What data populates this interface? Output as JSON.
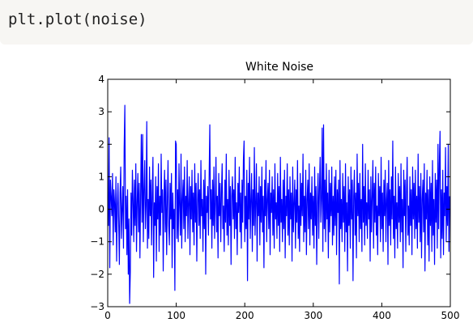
{
  "code": "plt.plot(noise)",
  "chart_data": {
    "type": "line",
    "title": "White Noise",
    "series": [
      {
        "color": "#0000ff",
        "values": [
          0.3,
          -0.5,
          2.2,
          -1.8,
          0.9,
          0.4,
          -0.2,
          1.1,
          -1.1,
          0.6,
          0.2,
          -0.7,
          1.0,
          -1.6,
          0.1,
          0.8,
          -0.4,
          -1.7,
          0.5,
          1.3,
          -0.9,
          0.0,
          0.7,
          -1.2,
          1.9,
          3.2,
          -0.6,
          0.4,
          -1.4,
          0.6,
          -2.0,
          -0.3,
          -2.9,
          -1.9,
          0.5,
          -0.8,
          1.2,
          0.3,
          -1.0,
          0.9,
          -0.5,
          1.4,
          -1.3,
          0.2,
          1.1,
          -0.7,
          0.8,
          -1.5,
          0.4,
          2.3,
          -0.4,
          2.3,
          -1.0,
          0.6,
          1.5,
          -0.6,
          0.1,
          2.7,
          -1.2,
          0.3,
          -0.9,
          1.3,
          -0.2,
          0.9,
          -1.1,
          0.5,
          1.6,
          -2.1,
          0.2,
          -0.5,
          1.0,
          -1.6,
          0.7,
          -0.3,
          1.4,
          -1.3,
          0.4,
          -0.8,
          1.7,
          -0.1,
          0.6,
          -1.9,
          0.3,
          1.2,
          -0.7,
          0.9,
          -1.4,
          0.2,
          1.5,
          -0.5,
          -1.1,
          0.8,
          -0.3,
          1.1,
          -1.8,
          0.5,
          -0.6,
          0.0,
          -2.5,
          2.1,
          2.0,
          -0.9,
          0.6,
          -1.0,
          1.4,
          0.1,
          -0.8,
          1.7,
          -1.2,
          0.3,
          0.9,
          -0.6,
          1.3,
          -1.0,
          0.4,
          -0.2,
          1.5,
          -0.9,
          0.2,
          1.0,
          -1.4,
          0.7,
          -0.3,
          1.2,
          -0.7,
          0.5,
          -1.1,
          1.4,
          -0.4,
          0.8,
          -1.6,
          0.2,
          1.1,
          -0.5,
          0.6,
          -0.9,
          1.5,
          -0.2,
          0.3,
          -1.3,
          0.9,
          -0.6,
          1.2,
          -2.0,
          0.4,
          -0.1,
          0.7,
          -0.8,
          1.0,
          2.6,
          -0.3,
          0.6,
          -1.2,
          0.9,
          -0.5,
          1.3,
          -0.9,
          0.2,
          1.6,
          -0.7,
          0.4,
          -1.5,
          1.1,
          -0.2,
          0.8,
          -1.0,
          0.5,
          1.4,
          -0.6,
          0.1,
          -1.3,
          0.9,
          -0.4,
          1.7,
          -0.8,
          0.3,
          -1.1,
          1.2,
          -0.5,
          0.7,
          -1.7,
          0.4,
          1.0,
          -0.3,
          0.6,
          -0.9,
          1.6,
          -0.6,
          0.2,
          -1.4,
          0.8,
          -0.1,
          1.3,
          -0.7,
          0.5,
          -1.2,
          0.9,
          -0.4,
          1.5,
          2.1,
          -1.0,
          0.4,
          -0.6,
          1.2,
          -2.2,
          0.8,
          -0.3,
          1.6,
          -0.9,
          0.3,
          1.1,
          -1.3,
          0.6,
          -0.5,
          1.9,
          -0.8,
          0.2,
          1.4,
          -1.6,
          0.5,
          -0.2,
          1.0,
          -1.1,
          0.7,
          -0.4,
          1.3,
          -0.7,
          0.4,
          -1.8,
          0.9,
          -0.2,
          1.5,
          -1.0,
          0.3,
          0.8,
          -0.6,
          1.2,
          -1.4,
          0.5,
          -0.1,
          1.0,
          -0.8,
          0.6,
          -1.2,
          1.4,
          -0.3,
          0.2,
          -0.9,
          1.1,
          -0.5,
          0.7,
          -1.3,
          1.6,
          -0.4,
          0.3,
          -1.0,
          0.9,
          -0.6,
          1.2,
          -1.5,
          0.4,
          -0.2,
          1.4,
          -0.8,
          0.6,
          -1.1,
          1.0,
          -0.3,
          0.5,
          -1.6,
          1.3,
          -0.7,
          0.2,
          0.9,
          -1.2,
          0.6,
          -0.4,
          1.5,
          -0.9,
          0.1,
          -1.3,
          1.1,
          -0.5,
          0.8,
          -0.2,
          1.7,
          -1.0,
          0.4,
          -0.7,
          1.2,
          -1.4,
          0.3,
          0.9,
          -0.6,
          1.4,
          -1.1,
          0.5,
          -0.3,
          1.0,
          -0.8,
          0.4,
          -1.2,
          1.3,
          -0.5,
          0.7,
          -1.7,
          0.2,
          1.1,
          -0.9,
          0.6,
          1.6,
          -0.4,
          0.3,
          2.5,
          -1.3,
          2.6,
          -0.6,
          0.9,
          -1.0,
          1.4,
          -0.3,
          0.5,
          -1.5,
          1.2,
          -0.7,
          0.8,
          -0.2,
          1.3,
          -1.1,
          0.4,
          -0.8,
          1.0,
          -0.5,
          1.2,
          -1.4,
          0.6,
          -0.1,
          0.9,
          -2.3,
          1.5,
          -0.6,
          0.3,
          -1.0,
          1.1,
          -0.4,
          0.7,
          -1.3,
          1.4,
          -0.7,
          0.2,
          -1.9,
          1.0,
          -0.5,
          0.6,
          -1.2,
          1.3,
          -0.3,
          0.9,
          -2.2,
          0.4,
          1.2,
          -0.8,
          0.5,
          -1.5,
          1.7,
          -0.2,
          0.8,
          -1.0,
          1.1,
          -0.6,
          0.3,
          -1.3,
          2.0,
          -0.4,
          0.7,
          -1.1,
          1.4,
          -0.5,
          0.2,
          -0.9,
          1.2,
          -0.3,
          0.6,
          -1.6,
          1.0,
          -0.7,
          0.4,
          1.5,
          -1.2,
          0.8,
          -0.4,
          1.3,
          -0.8,
          0.1,
          -1.4,
          1.1,
          -0.2,
          0.7,
          -1.0,
          1.6,
          -0.6,
          0.5,
          -1.3,
          0.9,
          -0.2,
          1.2,
          -1.0,
          0.3,
          0.8,
          -1.7,
          1.5,
          -0.5,
          0.6,
          -1.1,
          1.0,
          -0.3,
          2.1,
          -0.9,
          0.4,
          -1.5,
          1.3,
          -0.6,
          0.2,
          -1.2,
          1.1,
          -0.4,
          0.7,
          -1.0,
          1.4,
          -0.7,
          0.3,
          -1.8,
          1.2,
          -0.2,
          0.9,
          -1.3,
          0.5,
          1.6,
          -0.8,
          0.1,
          -1.1,
          1.0,
          -0.5,
          0.6,
          -1.4,
          1.3,
          -0.3,
          0.8,
          -0.9,
          1.2,
          -0.6,
          0.4,
          -1.2,
          1.7,
          -0.4,
          0.7,
          -1.0,
          1.1,
          -1.5,
          0.3,
          0.9,
          -0.7,
          1.4,
          -1.9,
          0.5,
          -0.3,
          1.2,
          -1.1,
          0.6,
          -1.6,
          1.0,
          -0.5,
          0.8,
          -1.3,
          1.5,
          -0.8,
          0.3,
          -1.7,
          1.1,
          -0.4,
          0.9,
          -1.2,
          2.0,
          -0.6,
          1.4,
          2.4,
          -1.5,
          0.6,
          -0.9,
          1.2,
          -1.4,
          0.5,
          -0.2,
          1.9,
          -1.0,
          0.7,
          -0.5,
          2.0,
          -1.3,
          0.4
        ]
      }
    ],
    "xlim": [
      0,
      500
    ],
    "xticks": [
      0,
      100,
      200,
      300,
      400,
      500
    ],
    "ylim": [
      -3,
      4
    ],
    "yticks": [
      {
        "value": -3,
        "label": "−3"
      },
      {
        "value": -2,
        "label": "−2"
      },
      {
        "value": -1,
        "label": "−1"
      },
      0,
      1,
      2,
      3,
      4
    ],
    "grid": false
  }
}
